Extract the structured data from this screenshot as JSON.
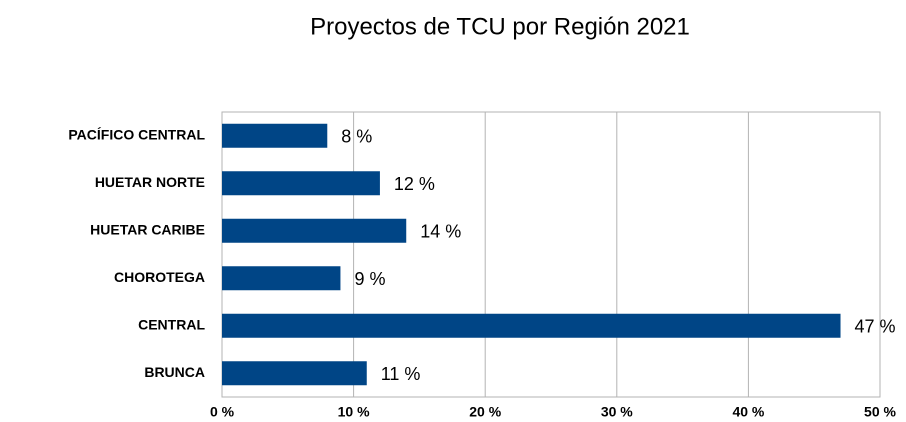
{
  "chart_data": {
    "type": "barh",
    "title": "Proyectos de TCU por Región 2021",
    "categories": [
      "PACÍFICO CENTRAL",
      "HUETAR NORTE",
      "HUETAR CARIBE",
      "CHOROTEGA",
      "CENTRAL",
      "BRUNCA"
    ],
    "values": [
      8,
      12,
      14,
      9,
      47,
      11
    ],
    "value_labels": [
      "8 %",
      "12 %",
      "14 %",
      "9 %",
      "47 %",
      "11 %"
    ],
    "color": "#004586",
    "xlim": [
      0,
      50
    ],
    "xticks": [
      {
        "value": 0,
        "label": "0 %"
      },
      {
        "value": 10,
        "label": "10 %"
      },
      {
        "value": 20,
        "label": "20 %"
      },
      {
        "value": 30,
        "label": "30 %"
      },
      {
        "value": 40,
        "label": "40 %"
      },
      {
        "value": 50,
        "label": "50 %"
      }
    ],
    "grid": true
  }
}
